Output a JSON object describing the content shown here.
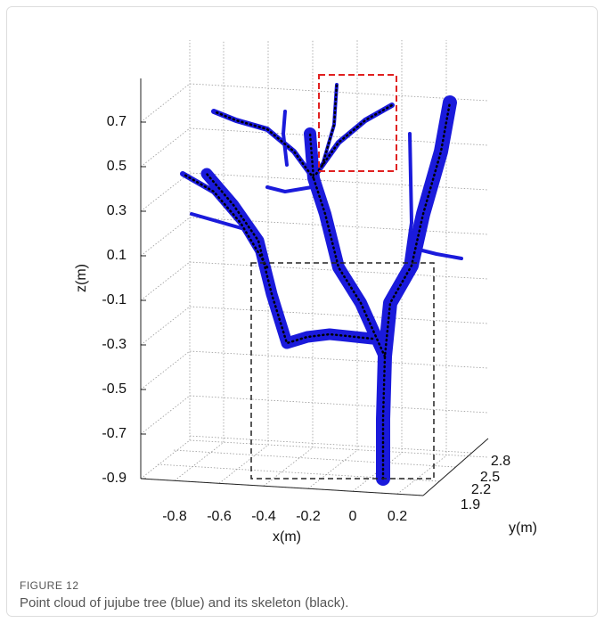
{
  "figure": {
    "z_label": "z(m)",
    "x_label": "x(m)",
    "y_label": "y(m)",
    "z_ticks": [
      "0.7",
      "0.5",
      "0.3",
      "0.1",
      "-0.1",
      "-0.3",
      "-0.5",
      "-0.7",
      "-0.9"
    ],
    "x_ticks": [
      "-0.8",
      "-0.6",
      "-0.4",
      "-0.2",
      "0",
      "0.2"
    ],
    "y_ticks": [
      "1.9",
      "2.2",
      "2.5",
      "2.8"
    ]
  },
  "caption": {
    "label": "FIGURE 12",
    "text": "Point cloud of jujube tree (blue) and its skeleton (black)."
  }
}
